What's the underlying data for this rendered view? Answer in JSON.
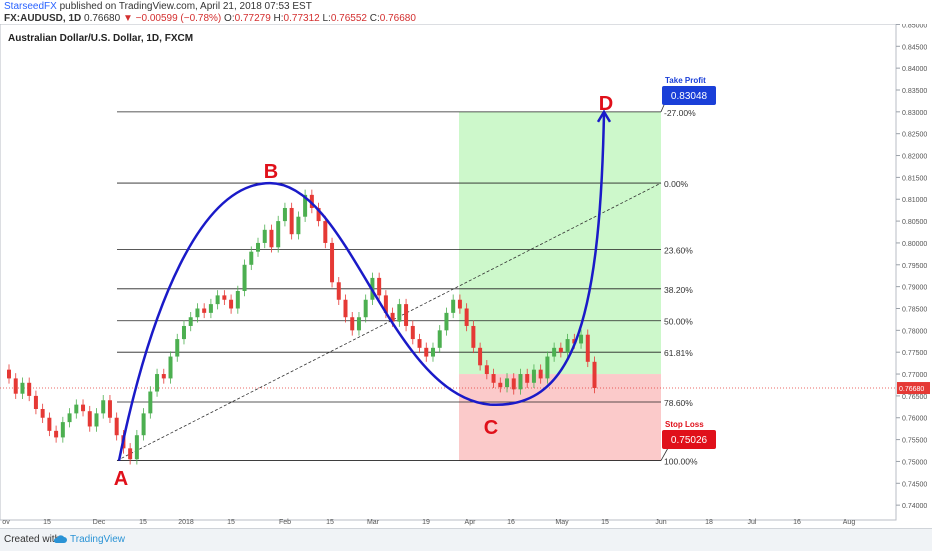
{
  "header": {
    "author": "StarseedFX",
    "published": "published on TradingView.com, April 21, 2018 07:53 EST",
    "symbol": "FX:AUDUSD, 1D",
    "last": "0.76680",
    "change": "−0.00599 (−0.78%)",
    "o_label": "O:",
    "o_value": "0.77279",
    "h_label": "H:",
    "h_value": "0.77312",
    "l_label": "L:",
    "l_value": "0.76552",
    "c_label": "C:",
    "c_value": "0.76680"
  },
  "chart_data": {
    "type": "candlestick",
    "title": "Australian Dollar/U.S. Dollar, 1D, FXCM",
    "ylim": [
      0.7366,
      0.8501
    ],
    "y_ticks": [
      "0.85000",
      "0.84500",
      "0.84000",
      "0.83500",
      "0.83000",
      "0.82500",
      "0.82000",
      "0.81500",
      "0.81000",
      "0.80500",
      "0.80000",
      "0.79500",
      "0.79000",
      "0.78500",
      "0.78000",
      "0.77500",
      "0.77000",
      "0.76500",
      "0.76000",
      "0.75500",
      "0.75000",
      "0.74500",
      "0.74000"
    ],
    "x_ticks": [
      "ov",
      "15",
      "Dec",
      "15",
      "2018",
      "15",
      "Feb",
      "15",
      "Mar",
      "19",
      "Apr",
      "16",
      "May",
      "15",
      "Jun",
      "18",
      "Jul",
      "16",
      "Aug"
    ],
    "current_price": "0.76680",
    "candles": [
      {
        "o": 0.771,
        "c": 0.769
      },
      {
        "o": 0.769,
        "c": 0.7655
      },
      {
        "o": 0.7655,
        "c": 0.768
      },
      {
        "o": 0.768,
        "c": 0.765
      },
      {
        "o": 0.765,
        "c": 0.762
      },
      {
        "o": 0.762,
        "c": 0.76
      },
      {
        "o": 0.76,
        "c": 0.757
      },
      {
        "o": 0.757,
        "c": 0.7555
      },
      {
        "o": 0.7555,
        "c": 0.759
      },
      {
        "o": 0.759,
        "c": 0.761
      },
      {
        "o": 0.761,
        "c": 0.763
      },
      {
        "o": 0.763,
        "c": 0.7615
      },
      {
        "o": 0.7615,
        "c": 0.758
      },
      {
        "o": 0.758,
        "c": 0.761
      },
      {
        "o": 0.761,
        "c": 0.764
      },
      {
        "o": 0.764,
        "c": 0.76
      },
      {
        "o": 0.76,
        "c": 0.756
      },
      {
        "o": 0.756,
        "c": 0.753
      },
      {
        "o": 0.753,
        "c": 0.7505
      },
      {
        "o": 0.7505,
        "c": 0.756
      },
      {
        "o": 0.756,
        "c": 0.761
      },
      {
        "o": 0.761,
        "c": 0.766
      },
      {
        "o": 0.766,
        "c": 0.77
      },
      {
        "o": 0.77,
        "c": 0.769
      },
      {
        "o": 0.769,
        "c": 0.774
      },
      {
        "o": 0.774,
        "c": 0.778
      },
      {
        "o": 0.778,
        "c": 0.781
      },
      {
        "o": 0.781,
        "c": 0.783
      },
      {
        "o": 0.783,
        "c": 0.785
      },
      {
        "o": 0.785,
        "c": 0.784
      },
      {
        "o": 0.784,
        "c": 0.786
      },
      {
        "o": 0.786,
        "c": 0.788
      },
      {
        "o": 0.788,
        "c": 0.787
      },
      {
        "o": 0.787,
        "c": 0.785
      },
      {
        "o": 0.785,
        "c": 0.789
      },
      {
        "o": 0.789,
        "c": 0.795
      },
      {
        "o": 0.795,
        "c": 0.798
      },
      {
        "o": 0.798,
        "c": 0.8
      },
      {
        "o": 0.8,
        "c": 0.803
      },
      {
        "o": 0.803,
        "c": 0.799
      },
      {
        "o": 0.799,
        "c": 0.805
      },
      {
        "o": 0.805,
        "c": 0.808
      },
      {
        "o": 0.808,
        "c": 0.802
      },
      {
        "o": 0.802,
        "c": 0.806
      },
      {
        "o": 0.806,
        "c": 0.811
      },
      {
        "o": 0.811,
        "c": 0.808
      },
      {
        "o": 0.808,
        "c": 0.805
      },
      {
        "o": 0.805,
        "c": 0.8
      },
      {
        "o": 0.8,
        "c": 0.791
      },
      {
        "o": 0.791,
        "c": 0.787
      },
      {
        "o": 0.787,
        "c": 0.783
      },
      {
        "o": 0.783,
        "c": 0.78
      },
      {
        "o": 0.78,
        "c": 0.783
      },
      {
        "o": 0.783,
        "c": 0.787
      },
      {
        "o": 0.787,
        "c": 0.792
      },
      {
        "o": 0.792,
        "c": 0.788
      },
      {
        "o": 0.788,
        "c": 0.784
      },
      {
        "o": 0.784,
        "c": 0.782
      },
      {
        "o": 0.782,
        "c": 0.786
      },
      {
        "o": 0.786,
        "c": 0.781
      },
      {
        "o": 0.781,
        "c": 0.778
      },
      {
        "o": 0.778,
        "c": 0.776
      },
      {
        "o": 0.776,
        "c": 0.774
      },
      {
        "o": 0.774,
        "c": 0.776
      },
      {
        "o": 0.776,
        "c": 0.78
      },
      {
        "o": 0.78,
        "c": 0.784
      },
      {
        "o": 0.784,
        "c": 0.787
      },
      {
        "o": 0.787,
        "c": 0.785
      },
      {
        "o": 0.785,
        "c": 0.781
      },
      {
        "o": 0.781,
        "c": 0.776
      },
      {
        "o": 0.776,
        "c": 0.772
      },
      {
        "o": 0.772,
        "c": 0.77
      },
      {
        "o": 0.77,
        "c": 0.768
      },
      {
        "o": 0.768,
        "c": 0.767
      },
      {
        "o": 0.767,
        "c": 0.769
      },
      {
        "o": 0.769,
        "c": 0.7665
      },
      {
        "o": 0.7665,
        "c": 0.77
      },
      {
        "o": 0.77,
        "c": 0.768
      },
      {
        "o": 0.768,
        "c": 0.771
      },
      {
        "o": 0.771,
        "c": 0.769
      },
      {
        "o": 0.769,
        "c": 0.774
      },
      {
        "o": 0.774,
        "c": 0.776
      },
      {
        "o": 0.776,
        "c": 0.775
      },
      {
        "o": 0.775,
        "c": 0.778
      },
      {
        "o": 0.778,
        "c": 0.777
      },
      {
        "o": 0.777,
        "c": 0.779
      },
      {
        "o": 0.779,
        "c": 0.7728
      },
      {
        "o": 0.7728,
        "c": 0.7668
      }
    ],
    "fib_levels": [
      {
        "label": "-27.00%",
        "price": 0.83
      },
      {
        "label": "0.00%",
        "price": 0.8137
      },
      {
        "label": "23.60%",
        "price": 0.7985
      },
      {
        "label": "38.20%",
        "price": 0.7895
      },
      {
        "label": "50.00%",
        "price": 0.7822
      },
      {
        "label": "61.81%",
        "price": 0.775
      },
      {
        "label": "78.60%",
        "price": 0.7636
      },
      {
        "label": "100.00%",
        "price": 0.7502
      }
    ],
    "annotations": {
      "points": [
        "A",
        "B",
        "C",
        "D"
      ],
      "take_profit_label": "Take Profit",
      "take_profit_value": "0.83048",
      "stop_loss_label": "Stop Loss",
      "stop_loss_value": "0.75026"
    },
    "colors": {
      "up": "#4caf50",
      "down": "#e53935",
      "curve": "#1a1ac8",
      "point": "#e0101a",
      "profit_zone": "#c8f7c5",
      "loss_zone": "#fbc4c4",
      "badge_blue": "#1a3fd8",
      "badge_red": "#e0101a"
    }
  },
  "footer": {
    "created_with": "Created with",
    "brand": "TradingView"
  }
}
